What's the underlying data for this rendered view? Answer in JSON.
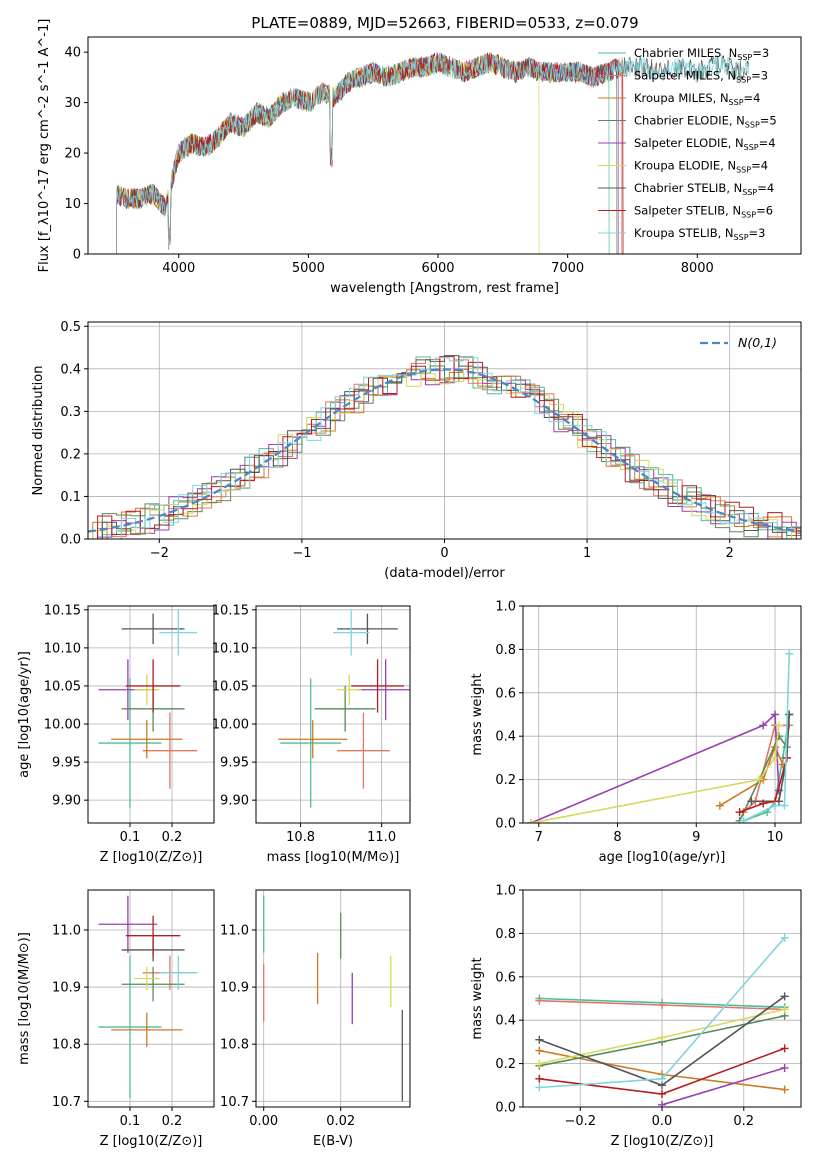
{
  "title": "PLATE=0889, MJD=52663, FIBERID=0533, z=0.079",
  "colors": [
    "#4cbf9a",
    "#e07868",
    "#cc7a22",
    "#5a8a5a",
    "#9b3fb0",
    "#d8d85a",
    "#555555",
    "#b51d1d",
    "#80d4dc"
  ],
  "chart_data": [
    {
      "type": "line",
      "panel": "spectrum",
      "xlabel": "wavelength [Angstrom, rest frame]",
      "ylabel": "Flux [f_λ10^-17 erg cm^-2 s^-1 A^-1]",
      "xlim": [
        3300,
        8800
      ],
      "ylim": [
        0,
        43
      ],
      "xticks": [
        4000,
        5000,
        6000,
        7000,
        8000
      ],
      "yticks": [
        0,
        10,
        20,
        30,
        40
      ],
      "x": [
        3520,
        3600,
        3700,
        3800,
        3900,
        3950,
        4000,
        4100,
        4200,
        4300,
        4400,
        4500,
        4600,
        4700,
        4800,
        4900,
        5000,
        5100,
        5200,
        5300,
        5400,
        5500,
        5600,
        5700,
        5800,
        5900,
        6000,
        6100,
        6200,
        6300,
        6400,
        6500,
        6600,
        6700,
        6800,
        6900,
        7000,
        7100,
        7200,
        7300,
        7400,
        7500,
        7600,
        7700,
        7800,
        7900,
        8000,
        8100,
        8200,
        8300,
        8400
      ],
      "flux": [
        12,
        11,
        11,
        12,
        9,
        15,
        20,
        22,
        21,
        23,
        26,
        25,
        28,
        27,
        30,
        31,
        30,
        32,
        31,
        34,
        35,
        36,
        35,
        36,
        37,
        37,
        38,
        37,
        36,
        37,
        38,
        37,
        36,
        37,
        36,
        36,
        36,
        36,
        35,
        36,
        37,
        37,
        37,
        36,
        37,
        37,
        36,
        37,
        38,
        36,
        37
      ],
      "series": [
        {
          "name": "Chabrier MILES, N_SSP=3"
        },
        {
          "name": "Salpeter MILES, N_SSP=3"
        },
        {
          "name": "Kroupa MILES, N_SSP=4"
        },
        {
          "name": "Chabrier ELODIE, N_SSP=5"
        },
        {
          "name": "Salpeter ELODIE, N_SSP=4"
        },
        {
          "name": "Kroupa ELODIE, N_SSP=4"
        },
        {
          "name": "Chabrier STELIB, N_SSP=4"
        },
        {
          "name": "Salpeter STELIB, N_SSP=6"
        },
        {
          "name": "Kroupa STELIB, N_SSP=3"
        }
      ],
      "legend": "upper right"
    },
    {
      "type": "line",
      "panel": "residuals",
      "xlabel": "(data-model)/error",
      "ylabel": "Normed distribution",
      "xlim": [
        -2.5,
        2.5
      ],
      "ylim": [
        0,
        0.51
      ],
      "xticks": [
        -2,
        -1,
        0,
        1,
        2
      ],
      "yticks": [
        0.0,
        0.1,
        0.2,
        0.3,
        0.4,
        0.5
      ],
      "series": [
        {
          "name": "N(0,1)",
          "style": "dashed",
          "color": "#4a86c8"
        }
      ],
      "legend": "upper right",
      "grid": true
    },
    {
      "type": "scatter",
      "panel": "age-vs-Z",
      "xlabel": "Z [log10(Z/Z⊙)]",
      "ylabel": "age  [log10(age/yr)]",
      "xlim": [
        0.0,
        0.3
      ],
      "ylim": [
        9.87,
        10.155
      ],
      "xticks": [
        0.1,
        0.2
      ],
      "yticks": [
        9.9,
        9.95,
        10.0,
        10.05,
        10.1,
        10.15
      ],
      "points": [
        {
          "x": 0.1,
          "y": 9.975,
          "xerr": 0.075,
          "yerr": 0.085
        },
        {
          "x": 0.195,
          "y": 9.965,
          "xerr": 0.065,
          "yerr": 0.05
        },
        {
          "x": 0.14,
          "y": 9.98,
          "xerr": 0.085,
          "yerr": 0.025
        },
        {
          "x": 0.155,
          "y": 10.02,
          "xerr": 0.075,
          "yerr": 0.03
        },
        {
          "x": 0.095,
          "y": 10.045,
          "xerr": 0.07,
          "yerr": 0.04
        },
        {
          "x": 0.14,
          "y": 10.045,
          "xerr": 0.03,
          "yerr": 0.02
        },
        {
          "x": 0.155,
          "y": 10.125,
          "xerr": 0.075,
          "yerr": 0.02
        },
        {
          "x": 0.155,
          "y": 10.05,
          "xerr": 0.065,
          "yerr": 0.035
        },
        {
          "x": 0.215,
          "y": 10.12,
          "xerr": 0.045,
          "yerr": 0.03
        }
      ],
      "grid": true
    },
    {
      "type": "scatter",
      "panel": "age-vs-mass",
      "xlabel": "mass [log10(M/M⊙)]",
      "ylabel": "",
      "xlim": [
        10.69,
        11.07
      ],
      "ylim": [
        9.87,
        10.155
      ],
      "xticks": [
        10.8,
        11.0
      ],
      "yticks": [
        9.9,
        9.95,
        10.0,
        10.05,
        10.1,
        10.15
      ],
      "points": [
        {
          "x": 10.825,
          "y": 9.975,
          "xerr": 0.075,
          "yerr": 0.085
        },
        {
          "x": 10.955,
          "y": 9.965,
          "xerr": 0.065,
          "yerr": 0.05
        },
        {
          "x": 10.83,
          "y": 9.98,
          "xerr": 0.085,
          "yerr": 0.025
        },
        {
          "x": 10.91,
          "y": 10.02,
          "xerr": 0.075,
          "yerr": 0.03
        },
        {
          "x": 11.01,
          "y": 10.045,
          "xerr": 0.07,
          "yerr": 0.04
        },
        {
          "x": 10.92,
          "y": 10.045,
          "xerr": 0.03,
          "yerr": 0.02
        },
        {
          "x": 10.965,
          "y": 10.125,
          "xerr": 0.075,
          "yerr": 0.02
        },
        {
          "x": 10.99,
          "y": 10.05,
          "xerr": 0.065,
          "yerr": 0.035
        },
        {
          "x": 10.925,
          "y": 10.12,
          "xerr": 0.045,
          "yerr": 0.03
        }
      ],
      "grid": true
    },
    {
      "type": "line",
      "panel": "weight-vs-age",
      "xlabel": "age  [log10(age/yr)]",
      "ylabel": "mass weight",
      "xlim": [
        6.8,
        10.33
      ],
      "ylim": [
        0.0,
        1.0
      ],
      "xticks": [
        7,
        8,
        9,
        10
      ],
      "yticks": [
        0.0,
        0.2,
        0.4,
        0.6,
        0.8,
        1.0
      ],
      "series": [
        {
          "x": [
            9.6,
            9.9,
            10.0,
            10.1,
            10.18
          ],
          "y": [
            0.01,
            0.05,
            0.1,
            0.3,
            0.5
          ]
        },
        {
          "x": [
            9.6,
            9.75,
            10.0,
            10.18
          ],
          "y": [
            0.05,
            0.1,
            0.45,
            0.45
          ]
        },
        {
          "x": [
            9.3,
            9.85,
            10.0,
            10.1
          ],
          "y": [
            0.08,
            0.2,
            0.35,
            0.27
          ]
        },
        {
          "x": [
            9.55,
            9.8,
            10.05,
            10.15
          ],
          "y": [
            0.01,
            0.2,
            0.4,
            0.35
          ]
        },
        {
          "x": [
            6.9,
            9.85,
            10.0,
            10.05
          ],
          "y": [
            0.0,
            0.45,
            0.5,
            0.15
          ]
        },
        {
          "x": [
            6.9,
            9.8,
            10.0,
            10.05
          ],
          "y": [
            0.0,
            0.2,
            0.3,
            0.45
          ]
        },
        {
          "x": [
            9.7,
            10.05,
            10.15,
            10.18
          ],
          "y": [
            0.1,
            0.1,
            0.3,
            0.5
          ]
        },
        {
          "x": [
            9.55,
            9.85,
            10.0,
            10.15
          ],
          "y": [
            0.05,
            0.09,
            0.1,
            0.3
          ]
        },
        {
          "x": [
            9.6,
            10.0,
            10.12,
            10.18
          ],
          "y": [
            0.01,
            0.08,
            0.08,
            0.78
          ]
        }
      ],
      "grid": true
    },
    {
      "type": "scatter",
      "panel": "mass-vs-Z",
      "xlabel": "Z [log10(Z/Z⊙)]",
      "ylabel": "mass [log10(M/M⊙)]",
      "xlim": [
        0.0,
        0.3
      ],
      "ylim": [
        10.69,
        11.07
      ],
      "xticks": [
        0.1,
        0.2
      ],
      "yticks": [
        10.7,
        10.8,
        10.9,
        11.0
      ],
      "points": [
        {
          "x": 0.1,
          "y": 10.83,
          "xerr": 0.075,
          "yerr": 0.125
        },
        {
          "x": 0.195,
          "y": 10.925,
          "xerr": 0.065,
          "yerr": 0.03
        },
        {
          "x": 0.14,
          "y": 10.825,
          "xerr": 0.085,
          "yerr": 0.03
        },
        {
          "x": 0.155,
          "y": 10.905,
          "xerr": 0.075,
          "yerr": 0.03
        },
        {
          "x": 0.095,
          "y": 11.01,
          "xerr": 0.07,
          "yerr": 0.05
        },
        {
          "x": 0.14,
          "y": 10.915,
          "xerr": 0.03,
          "yerr": 0.02
        },
        {
          "x": 0.155,
          "y": 10.965,
          "xerr": 0.075,
          "yerr": 0.02
        },
        {
          "x": 0.155,
          "y": 10.99,
          "xerr": 0.065,
          "yerr": 0.035
        },
        {
          "x": 0.215,
          "y": 10.925,
          "xerr": 0.045,
          "yerr": 0.03
        }
      ],
      "grid": true
    },
    {
      "type": "scatter",
      "panel": "mass-vs-EBV",
      "xlabel": "E(B-V)",
      "ylabel": "",
      "xlim": [
        -0.002,
        0.038
      ],
      "ylim": [
        10.69,
        11.07
      ],
      "xticks": [
        0.0,
        0.02
      ],
      "yticks": [
        10.7,
        10.8,
        10.9,
        11.0
      ],
      "points": [
        {
          "x": 0.0,
          "y": 11.01,
          "yerr": 0.05
        },
        {
          "x": 0.0,
          "y": 10.89,
          "yerr": 0.05
        },
        {
          "x": 0.014,
          "y": 10.915,
          "yerr": 0.045
        },
        {
          "x": 0.02,
          "y": 10.99,
          "yerr": 0.04
        },
        {
          "x": 0.023,
          "y": 10.88,
          "yerr": 0.045
        },
        {
          "x": 0.033,
          "y": 10.91,
          "yerr": 0.045
        },
        {
          "x": 0.036,
          "y": 10.78,
          "yerr": 0.08
        }
      ],
      "grid": true
    },
    {
      "type": "line",
      "panel": "weight-vs-Z",
      "xlabel": "Z [log10(Z/Z⊙)]",
      "ylabel": "mass weight",
      "xlim": [
        -0.34,
        0.34
      ],
      "ylim": [
        0.0,
        1.0
      ],
      "xticks": [
        -0.2,
        0.0,
        0.2
      ],
      "yticks": [
        0.0,
        0.2,
        0.4,
        0.6,
        0.8,
        1.0
      ],
      "series": [
        {
          "x": [
            -0.3,
            0.0,
            0.3
          ],
          "y": [
            0.5,
            0.48,
            0.46
          ]
        },
        {
          "x": [
            -0.3,
            0.0,
            0.3
          ],
          "y": [
            0.49,
            0.47,
            0.45
          ]
        },
        {
          "x": [
            -0.3,
            0.0,
            0.3
          ],
          "y": [
            0.26,
            0.15,
            0.08
          ]
        },
        {
          "x": [
            -0.3,
            0.0,
            0.3
          ],
          "y": [
            0.19,
            0.3,
            0.42
          ]
        },
        {
          "x": [
            0.0,
            0.3
          ],
          "y": [
            0.01,
            0.18
          ]
        },
        {
          "x": [
            -0.3,
            0.0,
            0.3
          ],
          "y": [
            0.2,
            0.32,
            0.45
          ]
        },
        {
          "x": [
            -0.3,
            0.0,
            0.3
          ],
          "y": [
            0.31,
            0.1,
            0.51
          ]
        },
        {
          "x": [
            -0.3,
            0.0,
            0.3
          ],
          "y": [
            0.13,
            0.06,
            0.27
          ]
        },
        {
          "x": [
            -0.3,
            0.0,
            0.3
          ],
          "y": [
            0.09,
            0.13,
            0.78
          ]
        }
      ],
      "grid": true
    }
  ]
}
